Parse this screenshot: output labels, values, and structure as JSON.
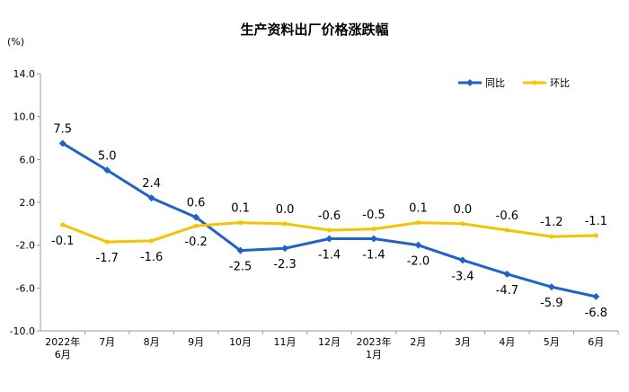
{
  "chart_data": {
    "type": "line",
    "title": "生产资料出厂价格涨跌幅",
    "ylabel": "(%)",
    "ylim": [
      -10,
      14
    ],
    "yticks": [
      "14.0",
      "10.0",
      "6.0",
      "2.0",
      "-2.0",
      "-6.0",
      "-10.0"
    ],
    "categories": [
      [
        "2022年",
        "6月"
      ],
      [
        "7月"
      ],
      [
        "8月"
      ],
      [
        "9月"
      ],
      [
        "10月"
      ],
      [
        "11月"
      ],
      [
        "12月"
      ],
      [
        "2023年",
        "1月"
      ],
      [
        "2月"
      ],
      [
        "3月"
      ],
      [
        "4月"
      ],
      [
        "5月"
      ],
      [
        "6月"
      ]
    ],
    "legend_position": "top-right",
    "series": [
      {
        "name": "同比",
        "color": "#1f63c6",
        "values": [
          7.5,
          5.0,
          2.4,
          0.6,
          -2.5,
          -2.3,
          -1.4,
          -1.4,
          -2.0,
          -3.4,
          -4.7,
          -5.9,
          -6.8
        ],
        "labels": [
          "7.5",
          "5.0",
          "2.4",
          "0.6",
          "-2.5",
          "-2.3",
          "-1.4",
          "-1.4",
          "-2.0",
          "-3.4",
          "-4.7",
          "-5.9",
          "-6.8"
        ]
      },
      {
        "name": "环比",
        "color": "#f5c400",
        "values": [
          -0.1,
          -1.7,
          -1.6,
          -0.2,
          0.1,
          0.0,
          -0.6,
          -0.5,
          0.1,
          0.0,
          -0.6,
          -1.2,
          -1.1
        ],
        "labels": [
          "-0.1",
          "-1.7",
          "-1.6",
          "-0.2",
          "0.1",
          "0.0",
          "-0.6",
          "-0.5",
          "0.1",
          "0.0",
          "-0.6",
          "-1.2",
          "-1.1"
        ]
      }
    ]
  }
}
